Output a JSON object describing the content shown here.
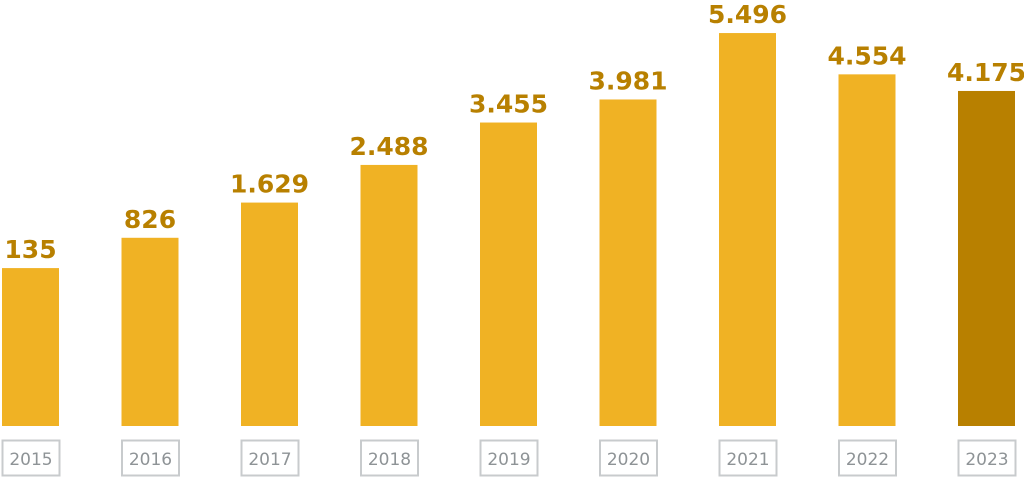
{
  "chart_data": {
    "type": "bar",
    "title": "",
    "xlabel": "",
    "ylabel": "",
    "categories": [
      "2015",
      "2016",
      "2017",
      "2018",
      "2019",
      "2020",
      "2021",
      "2022",
      "2023"
    ],
    "values": [
      135,
      826,
      1629,
      2488,
      3455,
      3981,
      5496,
      4554,
      4175
    ],
    "data_labels": [
      "135",
      "826",
      "1.629",
      "2.488",
      "3.455",
      "3.981",
      "5.496",
      "4.554",
      "4.175"
    ],
    "highlight_category": "2023",
    "grid": false,
    "colors": {
      "bar": "#f0b224",
      "highlight": "#b88000",
      "label": "#b88000",
      "tick_text": "#8e9396",
      "tick_border": "#c8cbcd"
    }
  }
}
